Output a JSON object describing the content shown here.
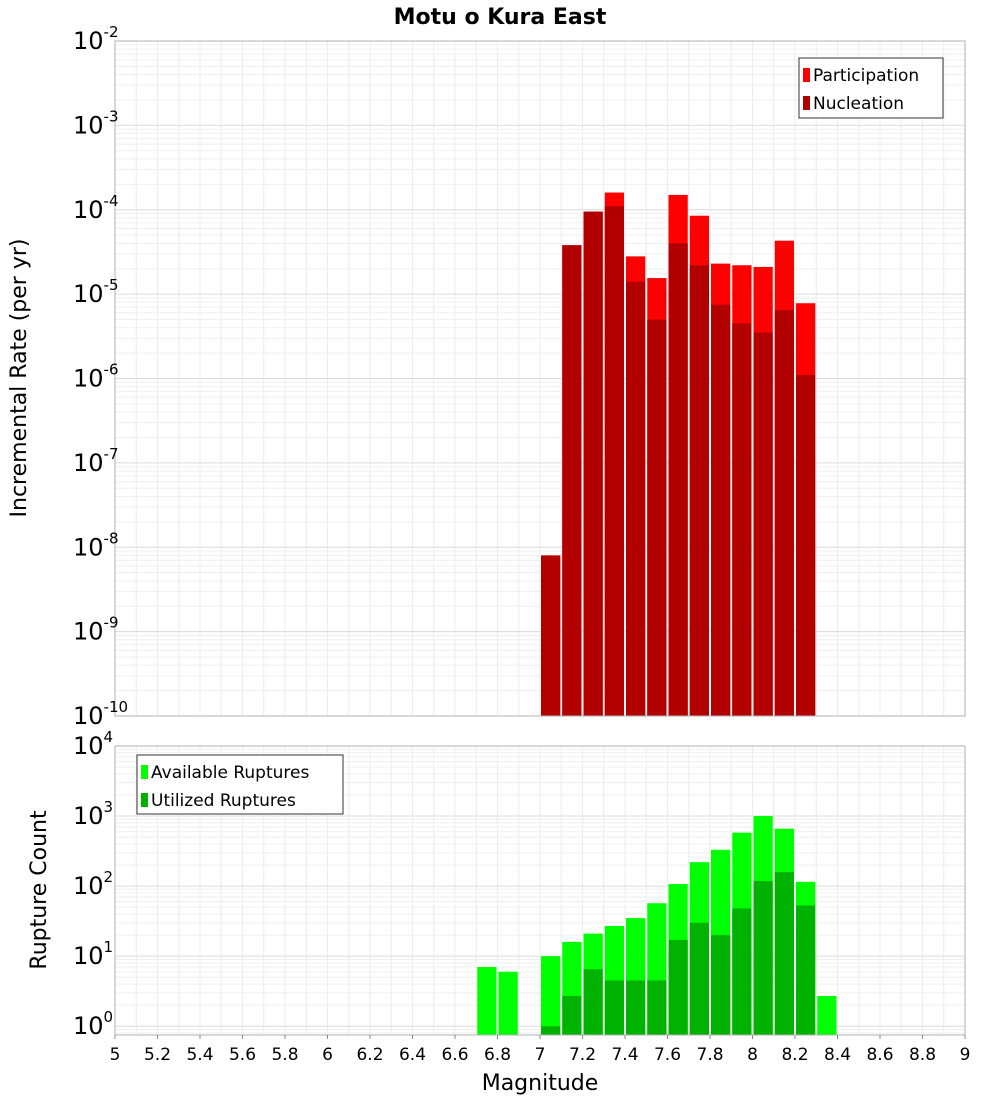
{
  "chart_data": [
    {
      "type": "bar",
      "title": "Motu o Kura East",
      "ylabel": "Incremental Rate (per yr)",
      "xlabel": "",
      "yscale": "log",
      "ylim": [
        1e-10,
        0.01
      ],
      "xlim": [
        5,
        9
      ],
      "grid": true,
      "legend_position": "top-right",
      "bin_width": 0.1,
      "x": [
        7.05,
        7.15,
        7.25,
        7.35,
        7.45,
        7.55,
        7.65,
        7.75,
        7.85,
        7.95,
        8.05,
        8.15,
        8.25
      ],
      "series": [
        {
          "name": "Participation",
          "color": "#ff0000",
          "values": [
            8e-09,
            3.8e-05,
            9.5e-05,
            0.00016,
            2.8e-05,
            1.55e-05,
            0.00015,
            8.5e-05,
            2.3e-05,
            2.2e-05,
            2.1e-05,
            4.3e-05,
            7.8e-06
          ]
        },
        {
          "name": "Nucleation",
          "color": "#b20000",
          "values": [
            8e-09,
            3.8e-05,
            9.5e-05,
            0.00011,
            1.4e-05,
            5e-06,
            4e-05,
            2.2e-05,
            7.5e-06,
            4.5e-06,
            3.5e-06,
            6.5e-06,
            1.1e-06
          ]
        }
      ],
      "ytick_exponents": [
        -10,
        -9,
        -8,
        -7,
        -6,
        -5,
        -4,
        -3,
        -2
      ]
    },
    {
      "type": "bar",
      "title": "",
      "ylabel": "Rupture Count",
      "xlabel": "Magnitude",
      "yscale": "log",
      "ylim": [
        0.75,
        10000
      ],
      "xlim": [
        5,
        9
      ],
      "grid": true,
      "legend_position": "top-left",
      "bin_width": 0.1,
      "x": [
        6.75,
        6.85,
        7.05,
        7.15,
        7.25,
        7.35,
        7.45,
        7.55,
        7.65,
        7.75,
        7.85,
        7.95,
        8.05,
        8.15,
        8.25,
        8.35
      ],
      "series": [
        {
          "name": "Available Ruptures",
          "color": "#00ff00",
          "values": [
            7,
            6,
            10,
            16,
            21,
            27,
            35,
            57,
            107,
            220,
            330,
            580,
            1000,
            660,
            115,
            2.7
          ]
        },
        {
          "name": "Utilized Ruptures",
          "color": "#00b200",
          "values": [
            null,
            null,
            1,
            2.7,
            6.5,
            4.5,
            4.5,
            4.5,
            17,
            30,
            20,
            48,
            118,
            158,
            53,
            null
          ]
        }
      ],
      "ytick_exponents": [
        0,
        1,
        2,
        3,
        4
      ],
      "xticks": [
        "5",
        "5.2",
        "5.4",
        "5.6",
        "5.8",
        "6",
        "6.2",
        "6.4",
        "6.6",
        "6.8",
        "7",
        "7.2",
        "7.4",
        "7.6",
        "7.8",
        "8",
        "8.2",
        "8.4",
        "8.6",
        "8.8",
        "9"
      ]
    }
  ]
}
